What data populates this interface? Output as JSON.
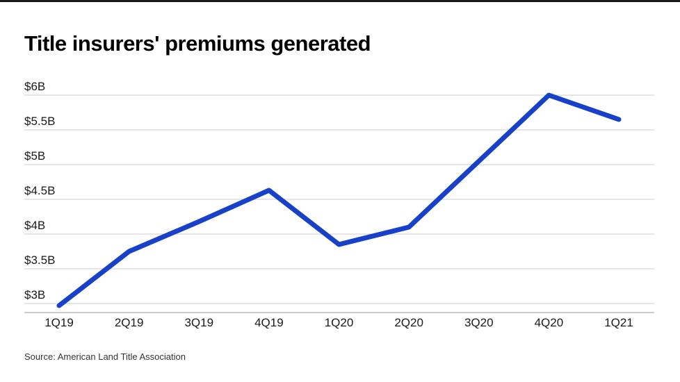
{
  "page": {
    "title": "Title insurers' premiums generated",
    "source": "Source: American Land Title Association"
  },
  "chart_data": {
    "type": "line",
    "title": "Title insurers' premiums generated",
    "categories": [
      "1Q19",
      "2Q19",
      "3Q19",
      "4Q19",
      "1Q20",
      "2Q20",
      "3Q20",
      "4Q20",
      "1Q21"
    ],
    "series": [
      {
        "name": "Premiums generated",
        "values": [
          2.97,
          3.75,
          4.18,
          4.63,
          3.85,
          4.1,
          5.05,
          6.0,
          5.65
        ]
      }
    ],
    "y_ticks": [
      {
        "value": 3,
        "label": "$3B"
      },
      {
        "value": 3.5,
        "label": "$3.5B"
      },
      {
        "value": 4,
        "label": "$4B"
      },
      {
        "value": 4.5,
        "label": "$4.5B"
      },
      {
        "value": 5,
        "label": "$5B"
      },
      {
        "value": 5.5,
        "label": "$5.5B"
      },
      {
        "value": 6,
        "label": "$6B"
      }
    ],
    "ylim": [
      2.87,
      6
    ],
    "xlabel": "",
    "ylabel": "",
    "grid": "horizontal",
    "legend": "none",
    "line_color": "#1641c8",
    "grid_color": "#cccccc",
    "axis_color": "#999999",
    "tick_label_color": "#1a1a1a",
    "source": "Source: American Land Title Association"
  }
}
